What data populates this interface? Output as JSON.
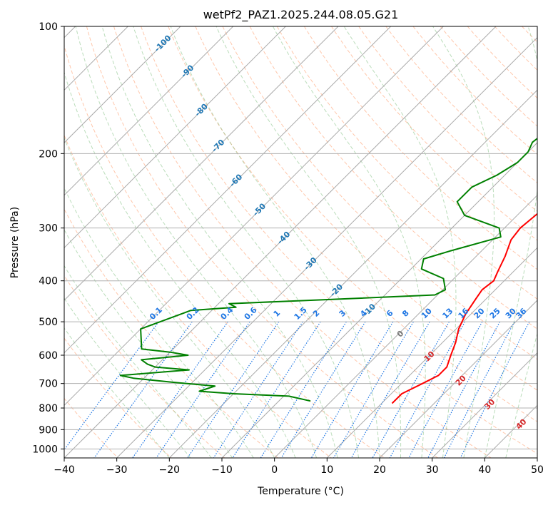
{
  "chart_data": {
    "type": "line",
    "title": "wetPf2_PAZ1.2025.244.08.05.G21",
    "xlabel": "Temperature (°C)",
    "ylabel": "Pressure (hPa)",
    "x_scale": "linear",
    "y_scale": "log",
    "xlim": [
      -40,
      50
    ],
    "ylim": [
      1050,
      100
    ],
    "x_ticks": [
      "−40",
      "−30",
      "−20",
      "−10",
      "0",
      "10",
      "20",
      "30",
      "40",
      "50"
    ],
    "x_tick_values": [
      -40,
      -30,
      -20,
      -10,
      0,
      10,
      20,
      30,
      40,
      50
    ],
    "y_ticks": [
      "1000",
      "900",
      "800",
      "700",
      "600",
      "500",
      "400",
      "300",
      "200",
      "100"
    ],
    "y_tick_values": [
      1000,
      900,
      800,
      700,
      600,
      500,
      400,
      300,
      200,
      100
    ],
    "grid": true,
    "colors": {
      "temperature": "#ff0000",
      "dewpoint": "#008000",
      "isotherm": "#aaaaaa",
      "dry_adiabat": "#ff9966",
      "moist_adiabat": "#77bb77",
      "mixing_ratio": "#1f77e4",
      "height_label": "#1f77b4",
      "wet_bulb_label": "#d62728",
      "zero_label": "#777777"
    },
    "isotherm_labels": [
      "-100",
      "-90",
      "-80",
      "-70",
      "-60",
      "-50",
      "-40",
      "-30",
      "-20",
      "-10"
    ],
    "isotherm_label_points": [
      {
        "t": -100,
        "p": 110
      },
      {
        "t": -90,
        "p": 128
      },
      {
        "t": -80,
        "p": 158
      },
      {
        "t": -70,
        "p": 192
      },
      {
        "t": -60,
        "p": 232
      },
      {
        "t": -50,
        "p": 272
      },
      {
        "t": -40,
        "p": 317
      },
      {
        "t": -30,
        "p": 365
      },
      {
        "t": -20,
        "p": 422
      },
      {
        "t": -10,
        "p": 470
      }
    ],
    "mixing_ratio_labels": [
      "0.1",
      "0.2",
      "0.4",
      "0.6",
      "1",
      "1.5",
      "2",
      "3",
      "4",
      "6",
      "8",
      "10",
      "13",
      "16",
      "20",
      "25",
      "30",
      "36"
    ],
    "mixing_ratio_label_x": [
      -22.5,
      -15.5,
      -9,
      -4.5,
      0.5,
      5,
      8,
      13,
      17,
      22,
      25,
      29,
      33,
      36,
      39,
      42,
      45,
      47
    ],
    "mixing_ratio_label_p": 490,
    "extra_labels": [
      {
        "text": "0",
        "t": 24,
        "p": 535,
        "kind": "zero"
      },
      {
        "text": "10",
        "t": 29.5,
        "p": 605,
        "kind": "wetbulb"
      },
      {
        "text": "20",
        "t": 35.5,
        "p": 690,
        "kind": "wetbulb"
      },
      {
        "text": "30",
        "t": 41,
        "p": 785,
        "kind": "wetbulb"
      },
      {
        "text": "40",
        "t": 47,
        "p": 875,
        "kind": "wetbulb"
      }
    ],
    "series": [
      {
        "key": "temperature",
        "points": [
          [
            12,
            780
          ],
          [
            12,
            740
          ],
          [
            14,
            700
          ],
          [
            15.5,
            670
          ],
          [
            15.5,
            640
          ],
          [
            14,
            600
          ],
          [
            12.5,
            560
          ],
          [
            10.5,
            520
          ],
          [
            9,
            480
          ],
          [
            8,
            440
          ],
          [
            7.5,
            420
          ],
          [
            8,
            400
          ],
          [
            7,
            380
          ],
          [
            5.5,
            350
          ],
          [
            3.5,
            320
          ],
          [
            3,
            300
          ],
          [
            3.5,
            280
          ],
          [
            4,
            260
          ],
          [
            5.5,
            240
          ],
          [
            5.5,
            225
          ],
          [
            5,
            200
          ],
          [
            4,
            180
          ],
          [
            3.5,
            163
          ],
          [
            5,
            153
          ],
          [
            8,
            144
          ],
          [
            10,
            135
          ],
          [
            10.5,
            125
          ],
          [
            11,
            118
          ],
          [
            13,
            112
          ],
          [
            15,
            106
          ],
          [
            17,
            100
          ]
        ]
      },
      {
        "key": "dewpoint",
        "points": [
          [
            -4,
            770
          ],
          [
            -9,
            750
          ],
          [
            -20,
            740
          ],
          [
            -27,
            730
          ],
          [
            -25,
            710
          ],
          [
            -34,
            695
          ],
          [
            -42,
            680
          ],
          [
            -45,
            670
          ],
          [
            -33,
            650
          ],
          [
            -40,
            640
          ],
          [
            -42,
            630
          ],
          [
            -44,
            615
          ],
          [
            -36,
            600
          ],
          [
            -40,
            590
          ],
          [
            -46,
            580
          ],
          [
            -50,
            520
          ],
          [
            -44,
            470
          ],
          [
            -36,
            462
          ],
          [
            -38,
            453
          ],
          [
            -20,
            443
          ],
          [
            -0.5,
            432
          ],
          [
            0.5,
            420
          ],
          [
            -2,
            395
          ],
          [
            -8,
            375
          ],
          [
            -9.5,
            355
          ],
          [
            -6,
            340
          ],
          [
            1,
            315
          ],
          [
            -1,
            300
          ],
          [
            -10,
            280
          ],
          [
            -14,
            260
          ],
          [
            -14,
            240
          ],
          [
            -11.5,
            225
          ],
          [
            -10,
            210
          ],
          [
            -10,
            198
          ],
          [
            -11,
            188
          ],
          [
            -10,
            170
          ],
          [
            -9,
            155
          ],
          [
            -7.5,
            140
          ],
          [
            -5,
            125
          ],
          [
            -2,
            115
          ],
          [
            1,
            108
          ],
          [
            2,
            100
          ]
        ]
      }
    ]
  }
}
